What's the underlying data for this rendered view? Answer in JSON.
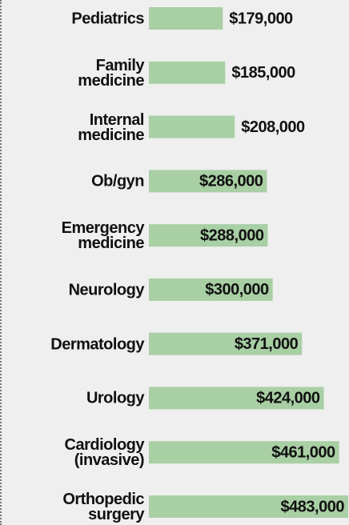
{
  "chart_data": {
    "type": "bar",
    "orientation": "horizontal",
    "color": "#a9cfa4",
    "categories": [
      "Pediatrics",
      "Family\nmedicine",
      "Internal\nmedicine",
      "Ob/gyn",
      "Emergency\nmedicine",
      "Neurology",
      "Dermatology",
      "Urology",
      "Cardiology\n(invasive)",
      "Orthopedic\nsurgery"
    ],
    "values": [
      179000,
      185000,
      208000,
      286000,
      288000,
      300000,
      371000,
      424000,
      461000,
      483000
    ],
    "value_labels": [
      "$179,000",
      "$185,000",
      "$208,000",
      "$286,000",
      "$288,000",
      "$300,000",
      "$371,000",
      "$424,000",
      "$461,000",
      "$483,000"
    ],
    "xlim": [
      0,
      485000
    ]
  }
}
